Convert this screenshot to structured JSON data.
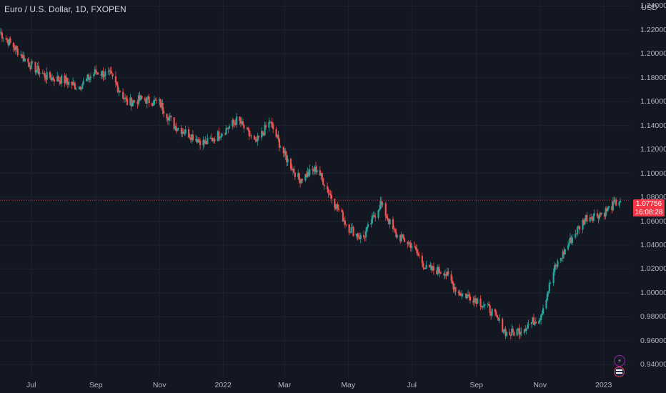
{
  "header": {
    "title": "Euro / U.S. Dollar, 1D, FXOPEN"
  },
  "price_scale": {
    "currency": "USD",
    "ticks": [
      "1.24000",
      "1.22000",
      "1.20000",
      "1.18000",
      "1.16000",
      "1.14000",
      "1.12000",
      "1.10000",
      "1.08000",
      "1.06000",
      "1.04000",
      "1.02000",
      "1.00000",
      "0.98000",
      "0.96000",
      "0.94000"
    ],
    "current_price": "1.07756",
    "countdown": "16:08:28"
  },
  "time_scale": {
    "ticks": [
      "Jul",
      "Sep",
      "Nov",
      "2022",
      "Mar",
      "May",
      "Jul",
      "Sep",
      "Nov",
      "2023"
    ]
  },
  "colors": {
    "up": "#26a69a",
    "down": "#ef5350",
    "background": "#131722",
    "grid": "#1f2330",
    "price_line": "#f23645"
  },
  "icons": [
    "flash-icon",
    "us-flag-icon"
  ],
  "chart_data": {
    "type": "candlestick",
    "title": "Euro / U.S. Dollar, 1D, FXOPEN",
    "ylabel": "USD",
    "ylim": [
      0.93,
      1.245
    ],
    "xlim": [
      "2021-06-01",
      "2023-01-17"
    ],
    "grid": true,
    "last_price": 1.07756,
    "series": [
      {
        "x": [
          "2021-06-01",
          "2021-06-15",
          "2021-07-01",
          "2021-07-15",
          "2021-08-01",
          "2021-08-15",
          "2021-09-01",
          "2021-09-15",
          "2021-10-01",
          "2021-10-15",
          "2021-11-01",
          "2021-11-15",
          "2021-12-01",
          "2021-12-15",
          "2022-01-01",
          "2022-01-15",
          "2022-02-01",
          "2022-02-15",
          "2022-03-01",
          "2022-03-15",
          "2022-04-01",
          "2022-04-15",
          "2022-05-01",
          "2022-05-15",
          "2022-06-01",
          "2022-06-15",
          "2022-07-01",
          "2022-07-15",
          "2022-08-01",
          "2022-08-15",
          "2022-09-01",
          "2022-09-15",
          "2022-10-01",
          "2022-10-15",
          "2022-11-01",
          "2022-11-15",
          "2022-12-01",
          "2022-12-15",
          "2023-01-01",
          "2023-01-17"
        ],
        "values": [
          1.218,
          1.205,
          1.19,
          1.181,
          1.178,
          1.172,
          1.185,
          1.182,
          1.159,
          1.162,
          1.159,
          1.14,
          1.132,
          1.125,
          1.135,
          1.145,
          1.125,
          1.143,
          1.115,
          1.095,
          1.104,
          1.08,
          1.055,
          1.045,
          1.075,
          1.049,
          1.04,
          1.02,
          1.018,
          1.0,
          0.995,
          0.985,
          0.965,
          0.97,
          0.98,
          1.02,
          1.045,
          1.063,
          1.067,
          1.078
        ]
      }
    ]
  }
}
